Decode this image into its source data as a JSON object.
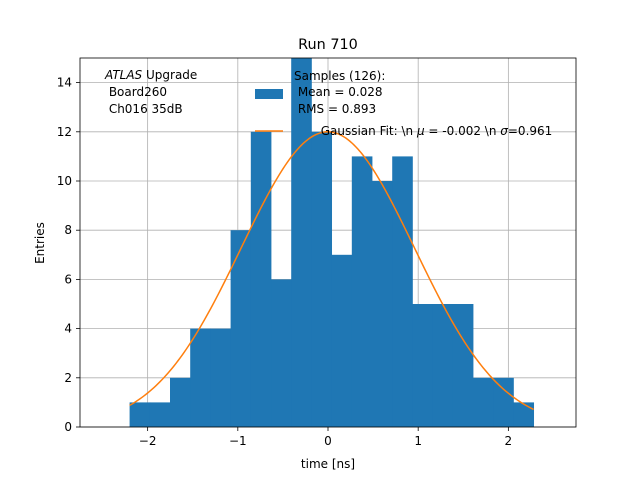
{
  "chart_data": {
    "type": "bar",
    "title": "Run 710",
    "xlabel": "time [ns]",
    "ylabel": "Entries",
    "xlim": [
      -2.75,
      2.75
    ],
    "ylim": [
      0,
      15
    ],
    "xticks": [
      -2,
      -1,
      0,
      1,
      2
    ],
    "yticks": [
      0,
      2,
      4,
      6,
      8,
      10,
      12,
      14
    ],
    "grid": true,
    "histogram": {
      "name": "Samples (126):\n Mean = 0.028\n RMS = 0.893",
      "color": "#1f77b4",
      "bin_start": -2.2,
      "bin_width": 0.224,
      "counts": [
        1,
        1,
        2,
        4,
        4,
        8,
        12,
        6,
        15,
        12,
        7,
        11,
        10,
        11,
        5,
        5,
        5,
        2,
        2,
        1
      ]
    },
    "fit": {
      "name": "Gaussian Fit: \\n μ = -0.002 \\n σ=0.961",
      "color": "#ff7f0e",
      "amplitude": 12.0,
      "mu": -0.002,
      "sigma": 0.961,
      "x_range": [
        -2.2,
        2.28
      ]
    },
    "legend_placement": "upper-right",
    "annotation": {
      "atlas": "ATLAS",
      "atlas_suffix": " Upgrade",
      "line2": " Board260",
      "line3": " Ch016 35dB"
    }
  },
  "legend": {
    "hist_line1": "Samples (126):",
    "hist_line2": " Mean = 0.028",
    "hist_line3": " RMS = 0.893",
    "fit_prefix": "Gaussian Fit: \\n ",
    "fit_mu": "μ",
    "fit_mid": " = -0.002 \\n ",
    "fit_sigma": "σ",
    "fit_end": "=0.961"
  }
}
